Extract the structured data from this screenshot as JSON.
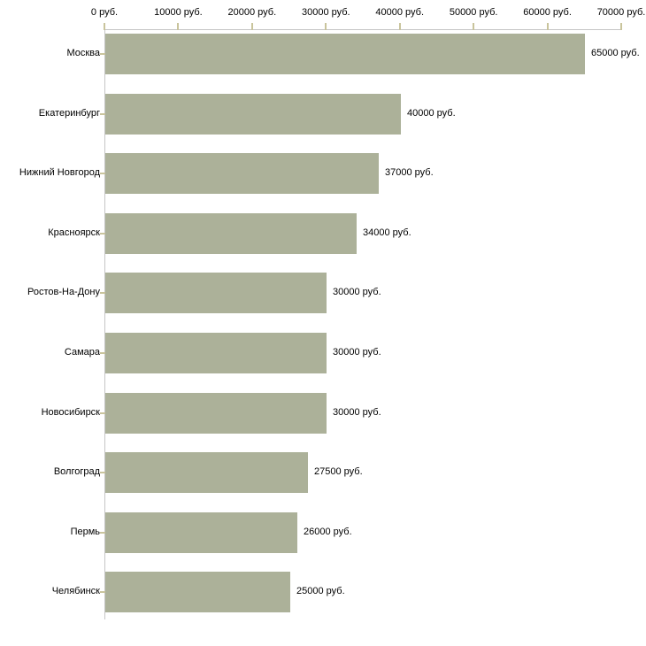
{
  "chart_data": {
    "type": "bar",
    "orientation": "horizontal",
    "title": "",
    "unit": "руб.",
    "categories": [
      "Москва",
      "Екатеринбург",
      "Нижний Новгород",
      "Красноярск",
      "Ростов-На-Дону",
      "Самара",
      "Новосибирск",
      "Волгоград",
      "Пермь",
      "Челябинск"
    ],
    "values": [
      65000,
      40000,
      37000,
      34000,
      30000,
      30000,
      30000,
      27500,
      26000,
      25000
    ],
    "value_labels": [
      "65000 руб.",
      "40000 руб.",
      "37000 руб.",
      "34000 руб.",
      "30000 руб.",
      "30000 руб.",
      "30000 руб.",
      "27500 руб.",
      "26000 руб.",
      "25000 руб."
    ],
    "x_axis": {
      "min": 0,
      "max": 70000,
      "tick_step": 10000,
      "position": "top",
      "tick_labels": [
        "0 руб.",
        "10000 руб.",
        "20000 руб.",
        "30000 руб.",
        "40000 руб.",
        "50000 руб.",
        "60000 руб.",
        "70000 руб."
      ]
    },
    "grid": false,
    "legend": null,
    "colors": {
      "bar": "#acb199",
      "axis_line": "#c6c6c6",
      "tick": "#c9c49c",
      "text": "#000000",
      "background": "#ffffff"
    }
  }
}
